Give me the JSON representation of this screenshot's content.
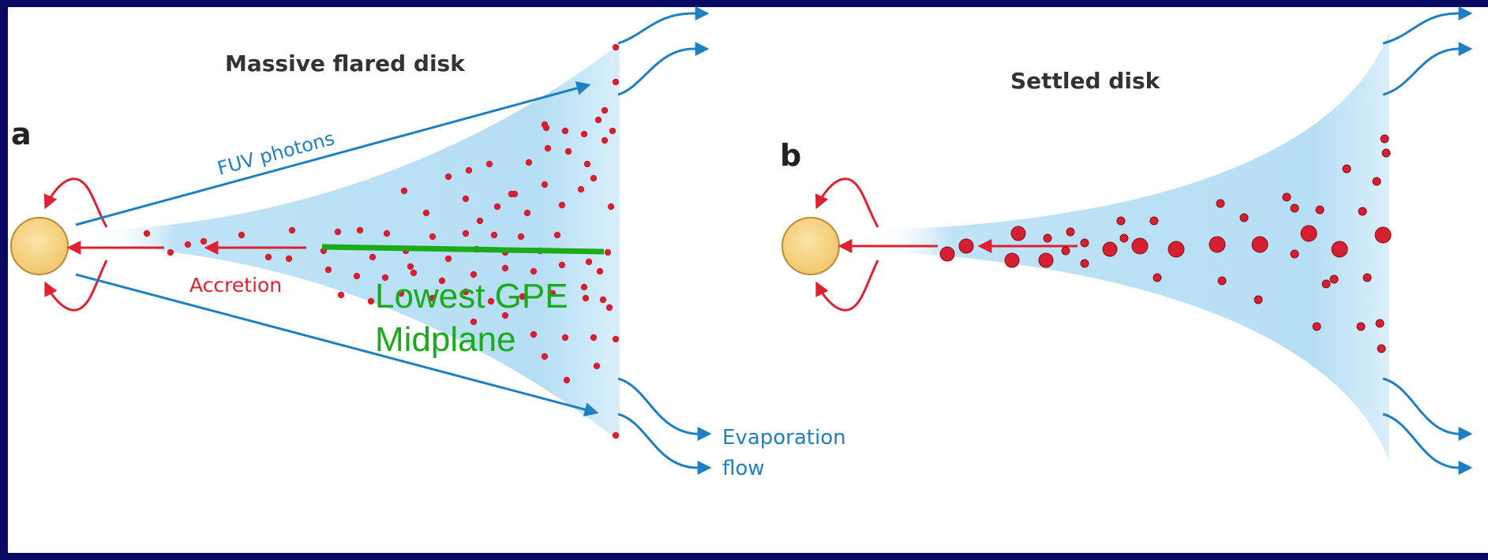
{
  "panel_a": {
    "letter": "a",
    "title": "Massive flared disk",
    "fuv_label": "FUV photons",
    "accretion_label": "Accretion",
    "annotation_line1": "Lowest GPE",
    "annotation_line2": "Midplane",
    "evaporation_line1": "Evaporation",
    "evaporation_line2": "flow"
  },
  "panel_b": {
    "letter": "b",
    "title": "Settled disk"
  },
  "colors": {
    "background_border": "#0a0a64",
    "disk": "#bfe3f6",
    "star": "#f7d488",
    "star_outline": "#b88a3a",
    "dust": "#d42030",
    "accretion_arrow": "#e02030",
    "fuv_arrow": "#1f7fc3",
    "annotation_green": "#1aaa1a",
    "label_text": "#222222"
  },
  "icons": {
    "star": "star-icon",
    "dust": "dust-grain-icon",
    "outflow": "outflow-arrow-icon"
  }
}
